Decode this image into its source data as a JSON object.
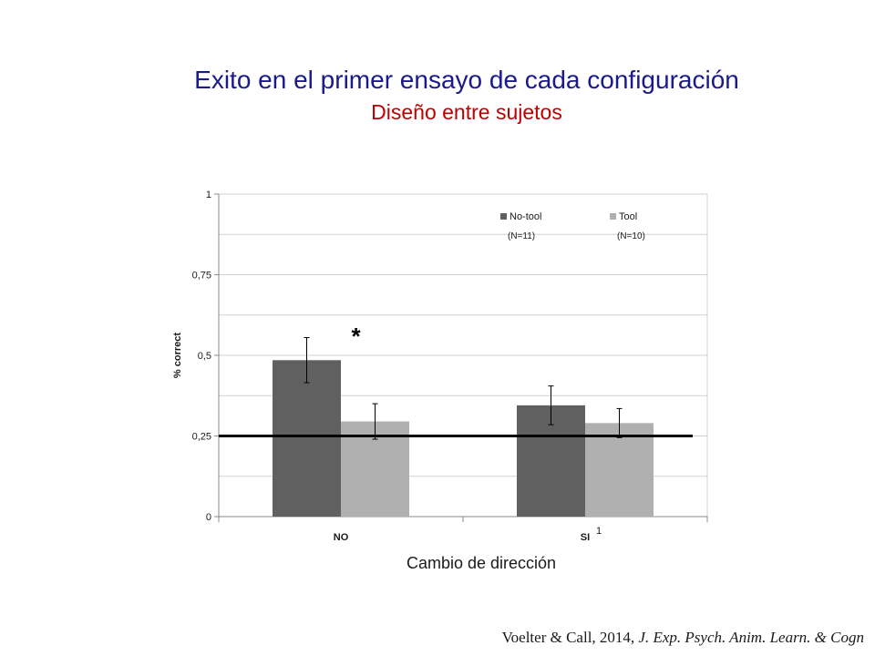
{
  "slide": {
    "title": "Exito en el primer ensayo de cada configuración",
    "subtitle": "Diseño entre sujetos",
    "x_caption": "Cambio de dirección",
    "citation_authors": "Voelter & Call, 2014,",
    "citation_journal": "J. Exp. Psych. Anim. Learn. & Cogn",
    "stray_mark": "1"
  },
  "chart_data": {
    "type": "bar",
    "categories": [
      "NO",
      "SI"
    ],
    "series": [
      {
        "name": "No-tool",
        "note": "(N=11)",
        "values": [
          0.485,
          0.345
        ],
        "errors": [
          0.07,
          0.06
        ],
        "color": "#606060"
      },
      {
        "name": "Tool",
        "note": "(N=10)",
        "values": [
          0.295,
          0.29
        ],
        "errors": [
          0.055,
          0.045
        ],
        "color": "#b0b0b0"
      }
    ],
    "ylabel": "% correct",
    "ylim": [
      0,
      1
    ],
    "yticks": [
      0,
      0.25,
      0.5,
      0.75,
      1
    ],
    "ytick_labels": [
      "0",
      "0,25",
      "0,5",
      "0,75",
      "1"
    ],
    "gridlines": [
      0.125,
      0.25,
      0.375,
      0.5,
      0.625,
      0.75,
      0.875,
      1
    ],
    "chance_line": 0.25,
    "annotation": "*",
    "annotation_category": "NO",
    "legend_position": "top-right",
    "grid": true
  }
}
